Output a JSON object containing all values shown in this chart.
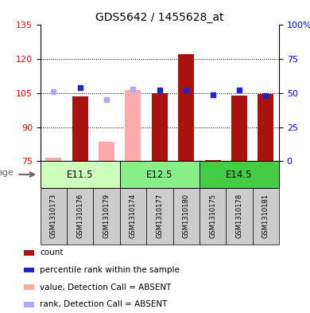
{
  "title": "GDS5642 / 1455628_at",
  "samples": [
    "GSM1310173",
    "GSM1310176",
    "GSM1310179",
    "GSM1310174",
    "GSM1310177",
    "GSM1310180",
    "GSM1310175",
    "GSM1310178",
    "GSM1310181"
  ],
  "ylim_left": [
    75,
    135
  ],
  "ylim_right": [
    0,
    100
  ],
  "yticks_left": [
    75,
    90,
    105,
    120,
    135
  ],
  "yticks_right": [
    0,
    25,
    50,
    75,
    100
  ],
  "ytick_labels_right": [
    "0",
    "25",
    "50",
    "75",
    "100%"
  ],
  "absent": [
    true,
    false,
    true,
    true,
    false,
    false,
    false,
    false,
    false
  ],
  "values": [
    76.5,
    103.5,
    83.5,
    106.5,
    105.0,
    122.0,
    75.5,
    104.0,
    104.5
  ],
  "ranks": [
    51,
    54,
    45,
    53,
    52,
    52,
    49,
    52,
    48
  ],
  "bar_color_present": "#aa1111",
  "bar_color_absent": "#ffaaaa",
  "rank_color_present": "#2222cc",
  "rank_color_absent": "#aaaaff",
  "baseline": 75,
  "groups_info": [
    {
      "label": "E11.5",
      "start": 0,
      "end": 2,
      "color": "#ccffbb"
    },
    {
      "label": "E12.5",
      "start": 3,
      "end": 5,
      "color": "#88ee88"
    },
    {
      "label": "E14.5",
      "start": 6,
      "end": 8,
      "color": "#44cc44"
    }
  ],
  "sample_bg": "#cccccc",
  "legend_items": [
    {
      "color": "#aa1111",
      "label": "count"
    },
    {
      "color": "#2222cc",
      "label": "percentile rank within the sample"
    },
    {
      "color": "#ffaaaa",
      "label": "value, Detection Call = ABSENT"
    },
    {
      "color": "#aaaaff",
      "label": "rank, Detection Call = ABSENT"
    }
  ],
  "age_label": "age",
  "grid_lines": [
    90,
    105,
    120
  ],
  "title_fontsize": 10,
  "tick_fontsize": 8,
  "legend_fontsize": 7.5,
  "bar_width": 0.6
}
